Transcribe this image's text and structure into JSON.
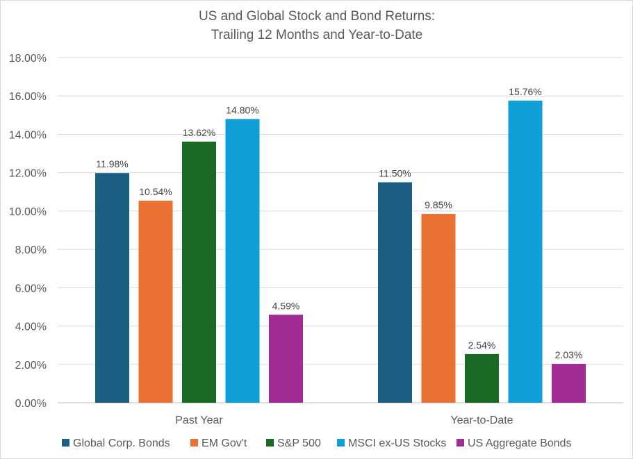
{
  "chart_data": {
    "type": "bar",
    "title": "US and Global Stock and Bond Returns:",
    "subtitle": "Trailing 12 Months and Year-to-Date",
    "xlabel": "",
    "ylabel": "",
    "categories": [
      "Past Year",
      "Year-to-Date"
    ],
    "ylim": [
      0,
      18
    ],
    "y_ticks": [
      0,
      2,
      4,
      6,
      8,
      10,
      12,
      14,
      16,
      18
    ],
    "y_tick_labels": [
      "0.00%",
      "2.00%",
      "4.00%",
      "6.00%",
      "8.00%",
      "10.00%",
      "12.00%",
      "14.00%",
      "16.00%",
      "18.00%"
    ],
    "grid": true,
    "legend_position": "bottom",
    "series": [
      {
        "name": "Global Corp. Bonds",
        "color": "#1a5f81",
        "values": [
          11.98,
          11.5
        ],
        "labels": [
          "11.98%",
          "11.50%"
        ]
      },
      {
        "name": "EM Gov't",
        "color": "#e97132",
        "values": [
          10.54,
          9.85
        ],
        "labels": [
          "10.54%",
          "9.85%"
        ]
      },
      {
        "name": "S&P 500",
        "color": "#196b24",
        "values": [
          13.62,
          2.54
        ],
        "labels": [
          "13.62%",
          "2.54%"
        ]
      },
      {
        "name": "MSCI ex-US Stocks",
        "color": "#0f9ed5",
        "values": [
          14.8,
          15.76
        ],
        "labels": [
          "14.80%",
          "15.76%"
        ]
      },
      {
        "name": "US Aggregate Bonds",
        "color": "#a02b93",
        "values": [
          4.59,
          2.03
        ],
        "labels": [
          "4.59%",
          "2.03%"
        ]
      }
    ]
  }
}
